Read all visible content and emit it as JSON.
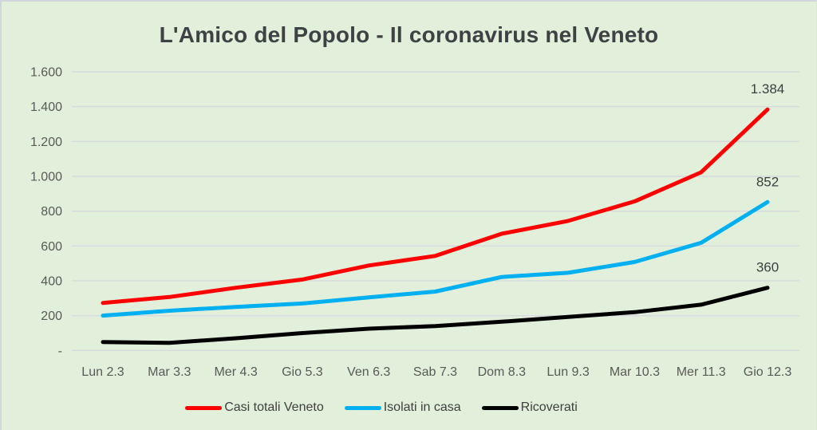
{
  "title": "L'Amico del Popolo - Il coronavirus nel Veneto",
  "chart_data": {
    "type": "line",
    "title": "L'Amico del Popolo - Il coronavirus nel Veneto",
    "categories": [
      "Lun 2.3",
      "Mar 3.3",
      "Mer 4.3",
      "Gio 5.3",
      "Ven 6.3",
      "Sab 7.3",
      "Dom 8.3",
      "Lun 9.3",
      "Mar 10.3",
      "Mer 11.3",
      "Gio 12.3"
    ],
    "series": [
      {
        "name": "Casi totali Veneto",
        "color": "#ff0000",
        "values": [
          273,
          307,
          360,
          407,
          488,
          543,
          670,
          744,
          856,
          1023,
          1384
        ],
        "end_label": "1.384"
      },
      {
        "name": "Isolati in casa",
        "color": "#00b0f0",
        "values": [
          200,
          228,
          250,
          270,
          305,
          338,
          422,
          446,
          508,
          618,
          852
        ],
        "end_label": "852"
      },
      {
        "name": "Ricoverati",
        "color": "#000000",
        "values": [
          48,
          44,
          70,
          100,
          125,
          140,
          165,
          193,
          220,
          263,
          360
        ],
        "end_label": "360"
      }
    ],
    "y_axis": {
      "tick_labels": [
        "1.600",
        "1.400",
        "1.200",
        "1.000",
        "800",
        "600",
        "400",
        "200",
        "-"
      ],
      "tick_values": [
        1600,
        1400,
        1200,
        1000,
        800,
        600,
        400,
        200,
        0
      ],
      "range": [
        0,
        1600
      ]
    },
    "xlabel": "",
    "ylabel": "",
    "grid": true,
    "legend_position": "bottom",
    "style": {
      "background_color": "#e2efda",
      "gridline_color": "#d6dade",
      "title_color": "#3f4245",
      "axis_label_color": "#595959",
      "end_label_color": "#3c4043"
    }
  }
}
